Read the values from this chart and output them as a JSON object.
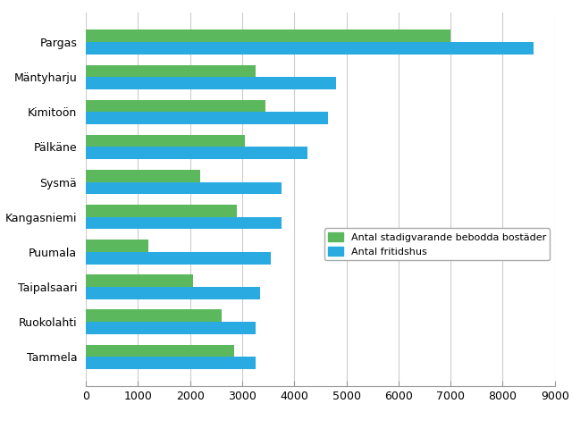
{
  "categories": [
    "Pargas",
    "Mäntyharju",
    "Kimitoön",
    "Pälkäne",
    "Sysmä",
    "Kangasniemi",
    "Puumala",
    "Taipalsaari",
    "Ruokolahti",
    "Tammela"
  ],
  "fritidshus": [
    8600,
    4800,
    4650,
    4250,
    3750,
    3750,
    3550,
    3350,
    3250,
    3250
  ],
  "bostader": [
    7000,
    3250,
    3450,
    3050,
    2200,
    2900,
    1200,
    2050,
    2600,
    2850
  ],
  "color_fritidshus": "#29ABE2",
  "color_bostader": "#5CB85C",
  "legend_fritidshus": "Antal fritidshus",
  "legend_bostader": "Antal stadigvarande bebodda bostäder",
  "xlim": [
    0,
    9000
  ],
  "xticks": [
    0,
    1000,
    2000,
    3000,
    4000,
    5000,
    6000,
    7000,
    8000,
    9000
  ],
  "background_color": "#ffffff",
  "bar_height": 0.35,
  "grid_color": "#cccccc"
}
